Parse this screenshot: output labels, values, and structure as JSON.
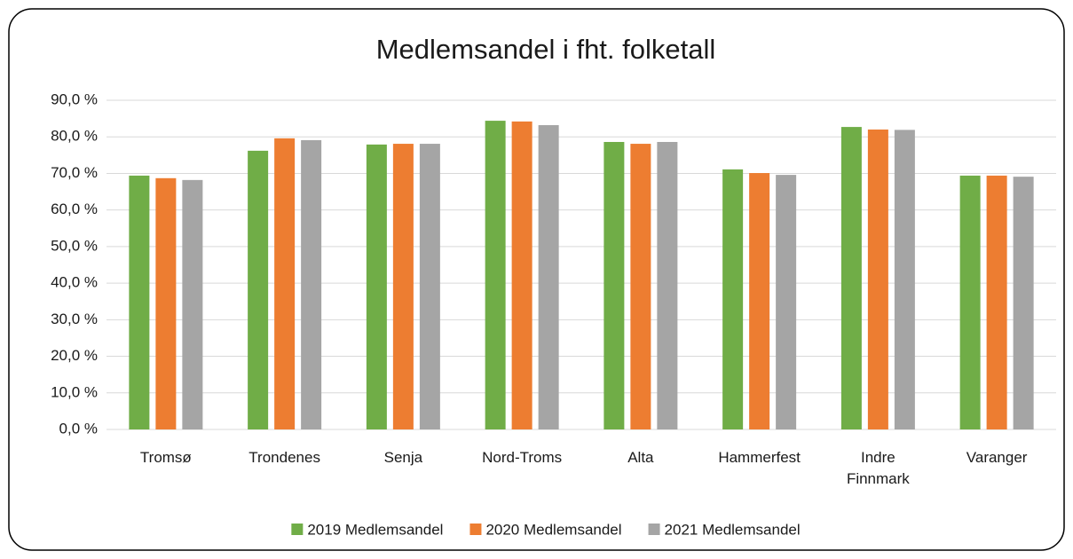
{
  "chart_data": {
    "type": "bar",
    "title": "Medlemsandel i fht. folketall",
    "categories": [
      "Tromsø",
      "Trondenes",
      "Senja",
      "Nord-Troms",
      "Alta",
      "Hammerfest",
      "Indre Finnmark",
      "Varanger"
    ],
    "series": [
      {
        "name": "2019 Medlemsandel",
        "color": "#70ad47",
        "values": [
          69.4,
          76.2,
          77.9,
          84.4,
          78.6,
          71.1,
          82.7,
          69.4
        ]
      },
      {
        "name": "2020 Medlemsandel",
        "color": "#ed7d31",
        "values": [
          68.7,
          79.6,
          78.1,
          84.2,
          78.1,
          70.1,
          82.0,
          69.4
        ]
      },
      {
        "name": "2021 Medlemsandel",
        "color": "#a5a5a5",
        "values": [
          68.2,
          79.1,
          78.1,
          83.2,
          78.6,
          69.6,
          81.9,
          69.1
        ]
      }
    ],
    "ylim": [
      0,
      90
    ],
    "yticks": [
      {
        "value": 0,
        "label": "0,0 %"
      },
      {
        "value": 10,
        "label": "10,0 %"
      },
      {
        "value": 20,
        "label": "20,0 %"
      },
      {
        "value": 30,
        "label": "30,0 %"
      },
      {
        "value": 40,
        "label": "40,0 %"
      },
      {
        "value": 50,
        "label": "50,0 %"
      },
      {
        "value": 60,
        "label": "60,0 %"
      },
      {
        "value": 70,
        "label": "70,0 %"
      },
      {
        "value": 80,
        "label": "80,0 %"
      },
      {
        "value": 90,
        "label": "90,0 %"
      }
    ],
    "grid": true,
    "legend": "bottom"
  }
}
